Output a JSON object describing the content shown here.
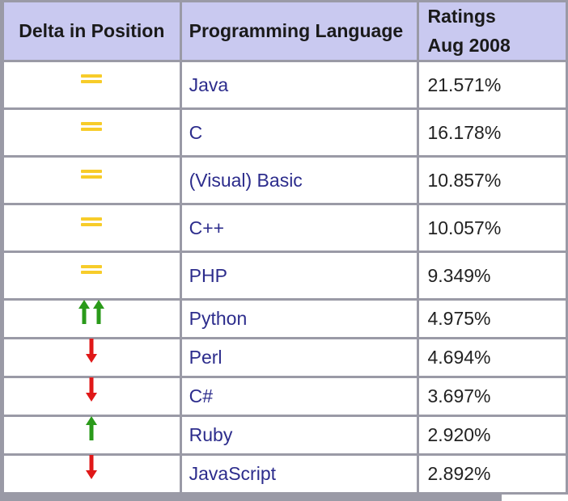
{
  "table": {
    "headers": {
      "delta": "Delta in Position",
      "language": "Programming Language",
      "ratings_line1": "Ratings",
      "ratings_line2": "Aug 2008"
    },
    "rows": [
      {
        "delta": "same",
        "language": "Java",
        "rating": "21.571%"
      },
      {
        "delta": "same",
        "language": "C",
        "rating": "16.178%"
      },
      {
        "delta": "same",
        "language": "(Visual) Basic",
        "rating": "10.857%"
      },
      {
        "delta": "same",
        "language": "C++",
        "rating": "10.057%"
      },
      {
        "delta": "same",
        "language": "PHP",
        "rating": "9.349%"
      },
      {
        "delta": "up-double",
        "language": "Python",
        "rating": "4.975%"
      },
      {
        "delta": "down",
        "language": "Perl",
        "rating": "4.694%"
      },
      {
        "delta": "down",
        "language": "C#",
        "rating": "3.697%"
      },
      {
        "delta": "up",
        "language": "Ruby",
        "rating": "2.920%"
      },
      {
        "delta": "down",
        "language": "JavaScript",
        "rating": "2.892%"
      }
    ]
  },
  "icons": {
    "same": "equals-icon",
    "up": "arrow-up-icon",
    "up-double": "double-arrow-up-icon",
    "down": "arrow-down-icon"
  },
  "colors": {
    "header_bg": "#c9c9f0",
    "grid": "#9a9aa6",
    "language_text": "#2c2c8c",
    "equals": "#f7cc2a",
    "up": "#2a9a1a",
    "down": "#e01818"
  }
}
